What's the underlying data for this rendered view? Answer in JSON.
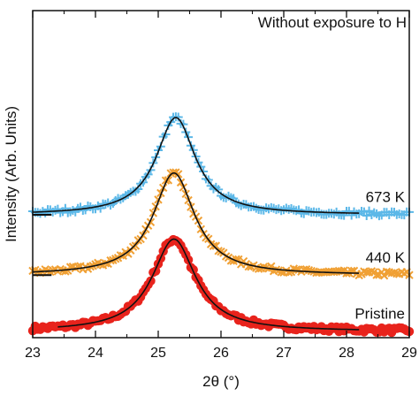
{
  "chart_data": {
    "type": "scatter",
    "title": "Without exposure to H",
    "xlabel": "2θ (°)",
    "ylabel": "Intensity (Arb. Units)",
    "xlim": [
      23,
      29
    ],
    "xticks": [
      23,
      24,
      25,
      26,
      27,
      28,
      29
    ],
    "x_tick_labels": [
      "23",
      "24",
      "25",
      "26",
      "27",
      "28",
      "29"
    ],
    "yticks_shown": false,
    "grid": false,
    "legend": "none",
    "fit_line_color": "#111111",
    "series": [
      {
        "name": "Pristine",
        "marker": "circle",
        "color": "#e8231c",
        "offset": 0.0,
        "peak_center": 25.25,
        "peak_height": 0.95,
        "hwhm": 0.42,
        "data_xrange": [
          23.0,
          29.0
        ],
        "fit_xrange": [
          23.4,
          28.2
        ]
      },
      {
        "name": "440 K",
        "marker": "x",
        "color": "#f0a034",
        "offset": 0.58,
        "peak_center": 25.25,
        "peak_height": 1.05,
        "hwhm": 0.4,
        "data_xrange": [
          23.0,
          29.0
        ],
        "fit_xrange": [
          23.0,
          28.2
        ],
        "baseline_mark_x": [
          23.0,
          23.3
        ]
      },
      {
        "name": "673 K",
        "marker": "plus",
        "color": "#5cb8e8",
        "offset": 1.2,
        "peak_center": 25.28,
        "peak_height": 1.0,
        "hwhm": 0.38,
        "data_xrange": [
          23.0,
          29.0
        ],
        "fit_xrange": [
          23.0,
          28.2
        ],
        "baseline_mark_x": [
          23.0,
          23.3
        ]
      }
    ]
  }
}
